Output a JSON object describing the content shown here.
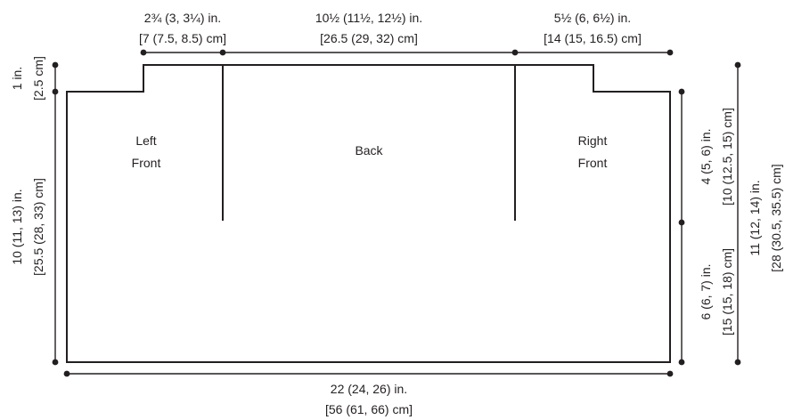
{
  "pieces": {
    "left_front": [
      "Left",
      "Front"
    ],
    "back": "Back",
    "right_front": [
      "Right",
      "Front"
    ]
  },
  "dimensions": {
    "top_left": [
      "2¾ (3, 3¼) in.",
      "[7 (7.5, 8.5) cm]"
    ],
    "top_middle": [
      "10½ (11½, 12½) in.",
      "[26.5 (29, 32) cm]"
    ],
    "top_right": [
      "5½ (6, 6½) in.",
      "[14 (15, 16.5) cm]"
    ],
    "left_upper": [
      "1 in.",
      "[2.5 cm]"
    ],
    "left_main": [
      "10 (11, 13) in.",
      "[25.5 (28, 33) cm]"
    ],
    "right_upper": [
      "4 (5, 6) in.",
      "[10 (12.5, 15) cm]"
    ],
    "right_lower": [
      "6 (6, 7) in.",
      "[15 (15, 18) cm]"
    ],
    "right_total": [
      "11 (12, 14) in.",
      "[28 (30.5, 35.5) cm]"
    ],
    "bottom": [
      "22 (24, 26) in.",
      "[56 (61, 66) cm]"
    ]
  }
}
